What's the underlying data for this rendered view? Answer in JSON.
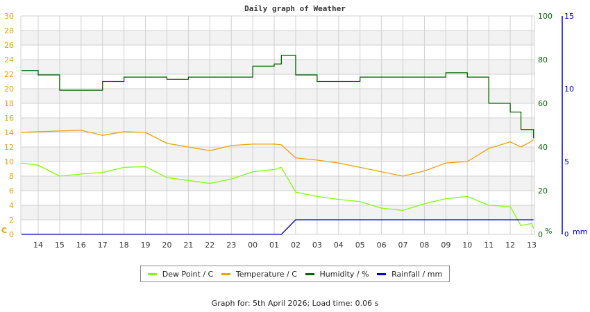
{
  "title": "Daily graph of Weather",
  "footer": "Graph for: 5th April 2026; Load time: 0.06 s",
  "colors": {
    "dew_point": "#80ff00",
    "temperature": "#f0a000",
    "humidity": "#006400",
    "rainfall": "#0000c0",
    "left_axis": "#f0a000",
    "humidity_axis": "#006400",
    "rain_axis": "#0000c0",
    "grid": "#d0d0d0",
    "band": "#f2f2f2"
  },
  "legend": [
    {
      "label": "Dew Point / C",
      "color": "#80ff00"
    },
    {
      "label": "Temperature / C",
      "color": "#f0a000"
    },
    {
      "label": "Humidity / %",
      "color": "#006400"
    },
    {
      "label": "Rainfall / mm",
      "color": "#0000c0"
    }
  ],
  "axes": {
    "left_unit": "C",
    "humidity_unit": "%",
    "rain_unit": "mm"
  },
  "chart_data": {
    "type": "line",
    "title": "Daily graph of Weather",
    "xlabel": "",
    "x_ticks": [
      "14",
      "15",
      "16",
      "17",
      "18",
      "19",
      "20",
      "21",
      "22",
      "23",
      "00",
      "01",
      "02",
      "03",
      "04",
      "05",
      "06",
      "07",
      "08",
      "09",
      "10",
      "11",
      "12",
      "13"
    ],
    "y_left": {
      "label": "C",
      "ticks": [
        0,
        2,
        4,
        6,
        8,
        10,
        12,
        14,
        16,
        18,
        20,
        22,
        24,
        26,
        28,
        30
      ],
      "range": [
        0,
        30
      ]
    },
    "y_right_humidity": {
      "label": "%",
      "ticks": [
        0,
        20,
        40,
        60,
        80,
        100
      ],
      "range": [
        0,
        100
      ]
    },
    "y_right_rain": {
      "label": "mm",
      "ticks": [
        0,
        5,
        10,
        15
      ],
      "range": [
        0,
        15
      ]
    },
    "grid": true,
    "legend_position": "bottom",
    "x": [
      "13:10",
      "14",
      "15",
      "16",
      "17",
      "18",
      "19",
      "20",
      "21",
      "22",
      "23",
      "00",
      "01",
      "01:20",
      "02",
      "03",
      "04",
      "05",
      "06",
      "07",
      "08",
      "09",
      "10",
      "11",
      "12",
      "12:30",
      "13",
      "13:05"
    ],
    "series": [
      {
        "name": "Dew Point / C",
        "axis": "left",
        "values": [
          9.8,
          9.5,
          8.0,
          8.3,
          8.5,
          9.2,
          9.3,
          7.8,
          7.4,
          7.0,
          7.6,
          8.6,
          8.9,
          9.2,
          5.8,
          5.2,
          4.8,
          4.5,
          3.6,
          3.3,
          4.2,
          4.9,
          5.2,
          4.0,
          3.8,
          1.2,
          1.5,
          0.8
        ]
      },
      {
        "name": "Temperature / C",
        "axis": "left",
        "values": [
          14.0,
          14.1,
          14.2,
          14.3,
          13.6,
          14.1,
          14.0,
          12.5,
          12.0,
          11.5,
          12.2,
          12.4,
          12.4,
          12.3,
          10.5,
          10.2,
          9.8,
          9.2,
          8.6,
          8.0,
          8.7,
          9.8,
          10.0,
          11.8,
          12.7,
          12.0,
          12.8,
          13.0
        ]
      },
      {
        "name": "Humidity / %",
        "axis": "humidity",
        "values": [
          75,
          73,
          66,
          66,
          70,
          72,
          72,
          71,
          72,
          72,
          72,
          77,
          78,
          82,
          73,
          70,
          70,
          72,
          72,
          72,
          72,
          74,
          72,
          60,
          56,
          48,
          48,
          44
        ]
      },
      {
        "name": "Rainfall / mm",
        "axis": "rain",
        "values": [
          0,
          0,
          0,
          0,
          0,
          0,
          0,
          0,
          0,
          0,
          0,
          0,
          0,
          0,
          1.0,
          1.0,
          1.0,
          1.0,
          1.0,
          1.0,
          1.0,
          1.0,
          1.0,
          1.0,
          1.0,
          1.0,
          1.0,
          1.0
        ]
      }
    ]
  }
}
